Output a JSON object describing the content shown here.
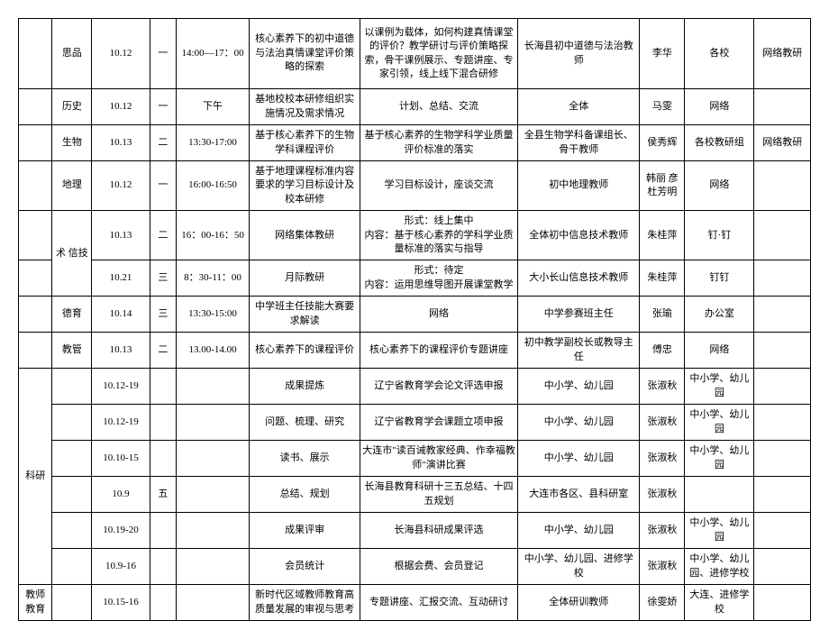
{
  "rows": [
    {
      "c0": "",
      "c1": "思品",
      "c2": "10.12",
      "c3": "一",
      "c4": "14:00—17：00",
      "c5": "核心素养下的初中道德与法治真情课堂评价策略的探索",
      "c6": "以课例为载体，如何构建真情课堂的评价？教学研讨与评价策略探索，骨干课例展示、专题讲座、专家引领，线上线下混合研修",
      "c7": "长海县初中道德与法治教师",
      "c8": "李华",
      "c9": "各校",
      "c10": "网络教研",
      "cls": "tall"
    },
    {
      "c0": "",
      "c1": "历史",
      "c2": "10.12",
      "c3": "一",
      "c4": "下午",
      "c5": "基地校校本研修组织实施情况及需求情况",
      "c6": "计划、总结、交流",
      "c7": "全体",
      "c8": "马雯",
      "c9": "网络",
      "c10": "",
      "cls": "med"
    },
    {
      "c0": "",
      "c1": "生物",
      "c2": "10.13",
      "c3": "二",
      "c4": "13:30-17:00",
      "c5": "基于核心素养下的生物学科课程评价",
      "c6": "基于核心素养的生物学科学业质量评价标准的落实",
      "c7": "全县生物学科备课组长、骨干教师",
      "c8": "侯秀辉",
      "c9": "各校教研组",
      "c10": "网络教研",
      "cls": "med"
    },
    {
      "c0": "",
      "c1": "地理",
      "c2": "10.12",
      "c3": "一",
      "c4": "16:00-16:50",
      "c5": "基于地理课程标准内容要求的学习目标设计及校本研修",
      "c6": "学习目标设计，座谈交流",
      "c7": "初中地理教师",
      "c8": "韩丽 彦杜芳明",
      "c9": "网络",
      "c10": "",
      "cls": "med"
    },
    {
      "rowspan1": true,
      "c1": "术 信技",
      "c2": "10.13",
      "c3": "二",
      "c4": "16：00-16：50",
      "c5": "网络集体教研",
      "c6": "形式：线上集中\n内容：基于核心素养的学科学业质量标准的落实与指导",
      "c7": "全体初中信息技术教师",
      "c8": "朱桂萍",
      "c9": "钉·钉",
      "c10": "",
      "cls": "med"
    },
    {
      "span1": true,
      "c2": "10.21",
      "c3": "三",
      "c4": "8：30-11：00",
      "c5": "月际教研",
      "c6": "形式：待定\n内容：运用思维导图开展课堂教学",
      "c7": "大小长山信息技术教师",
      "c8": "朱桂萍",
      "c9": "钉钉",
      "c10": "",
      "cls": "med"
    },
    {
      "c0": "",
      "c1": "德育",
      "c2": "10.14",
      "c3": "三",
      "c4": "13:30-15:00",
      "c5": "中学班主任技能大赛要求解读",
      "c6": "网络",
      "c7": "中学参赛班主任",
      "c8": "张瑜",
      "c9": "办公室",
      "c10": "",
      "cls": "med"
    },
    {
      "c0": "",
      "c1": "教管",
      "c2": "10.13",
      "c3": "二",
      "c4": "13.00-14.00",
      "c5": "核心素养下的课程评价",
      "c6": "核心素养下的课程评价专题讲座",
      "c7": "初中教学副校长或教导主任",
      "c8": "傅忠",
      "c9": "网络",
      "c10": "",
      "cls": "med"
    },
    {
      "rowspan0": true,
      "rowspanLen": 6,
      "c0": "科研",
      "c1": "",
      "c2": "10.12-19",
      "c3": "",
      "c4": "",
      "c5": "成果提炼",
      "c6": "辽宁省教育学会论文评选申报",
      "c7": "中小学、幼儿园",
      "c8": "张淑秋",
      "c9": "中小学、幼儿园",
      "c10": "",
      "cls": "med"
    },
    {
      "span0": true,
      "c1": "",
      "c2": "10.12-19",
      "c3": "",
      "c4": "",
      "c5": "问题、梳理、研究",
      "c6": "辽宁省教育学会课题立项申报",
      "c7": "中小学、幼儿园",
      "c8": "张淑秋",
      "c9": "中小学、幼儿园",
      "c10": "",
      "cls": "med"
    },
    {
      "span0": true,
      "c1": "",
      "c2": "10.10-15",
      "c3": "",
      "c4": "",
      "c5": "读书、展示",
      "c6": "大连市\"读百诫教家经典、作幸福教师\"演讲比赛",
      "c7": "中小学、幼儿园",
      "c8": "张淑秋",
      "c9": "中小学、幼儿园",
      "c10": "",
      "cls": "med"
    },
    {
      "span0": true,
      "c1": "",
      "c2": "10.9",
      "c3": "五",
      "c4": "",
      "c5": "总结、规划",
      "c6": "长海县教育科研十三五总结、十四五规划",
      "c7": "大连市各区、县科研室",
      "c8": "张淑秋",
      "c9": "",
      "c10": "",
      "cls": "med"
    },
    {
      "span0": true,
      "c1": "",
      "c2": "10.19-20",
      "c3": "",
      "c4": "",
      "c5": "成果评审",
      "c6": "长海县科研成果评选",
      "c7": "中小学、幼儿园",
      "c8": "张淑秋",
      "c9": "中小学、幼儿园",
      "c10": "",
      "cls": "med"
    },
    {
      "span0": true,
      "c1": "",
      "c2": "10.9-16",
      "c3": "",
      "c4": "",
      "c5": "会员统计",
      "c6": "根据会费、会员登记",
      "c7": "中小学、幼儿园、进修学校",
      "c8": "张淑秋",
      "c9": "中小学、幼儿园、进修学校",
      "c10": "",
      "cls": "med"
    },
    {
      "c0": "教师教育",
      "c1": "",
      "c2": "10.15-16",
      "c3": "",
      "c4": "",
      "c5": "新时代区域教师教育高质量发展的审视与思考",
      "c6": "专题讲座、汇报交流、互动研讨",
      "c7": "全体研训教师",
      "c8": "徐雯娇",
      "c9": "大连、进修学校",
      "c10": "",
      "cls": "med"
    }
  ]
}
